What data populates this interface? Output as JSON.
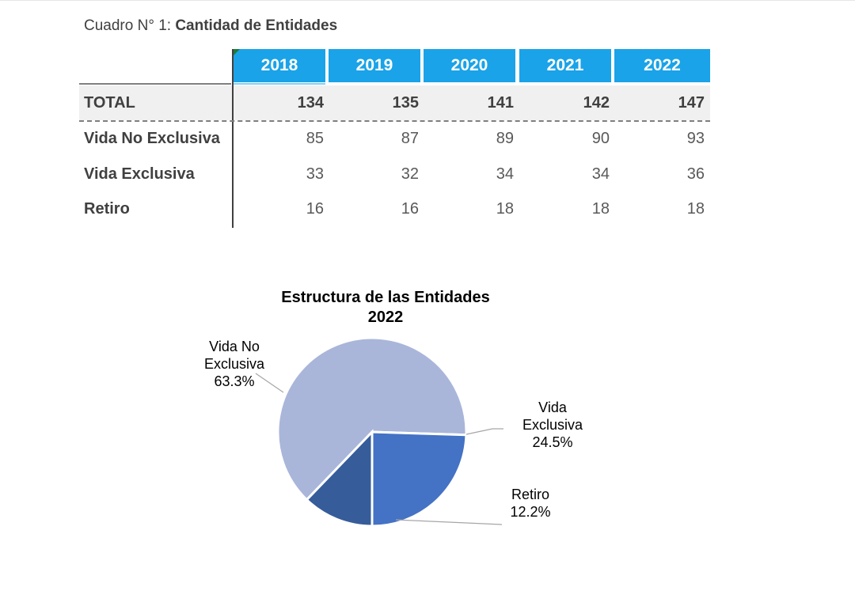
{
  "caption": {
    "prefix": "Cuadro N° 1: ",
    "title": "Cantidad de Entidades"
  },
  "table": {
    "years": [
      "2018",
      "2019",
      "2020",
      "2021",
      "2022"
    ],
    "rows": [
      {
        "label": "TOTAL",
        "values": [
          "134",
          "135",
          "141",
          "142",
          "147"
        ]
      },
      {
        "label": "Vida No Exclusiva",
        "values": [
          "85",
          "87",
          "89",
          "90",
          "93"
        ]
      },
      {
        "label": "Vida Exclusiva",
        "values": [
          "33",
          "32",
          "34",
          "34",
          "36"
        ]
      },
      {
        "label": "Retiro",
        "values": [
          "16",
          "16",
          "18",
          "18",
          "18"
        ]
      }
    ]
  },
  "colors": {
    "header_blue": "#1aa3e8",
    "vida_no_exclusiva": "#a9b6da",
    "vida_exclusiva": "#4472c4",
    "retiro": "#365c9a"
  },
  "chart_data": {
    "type": "pie",
    "title": "Estructura de las Entidades",
    "subtitle": "2022",
    "slices": [
      {
        "label_line1": "Vida No",
        "label_line2": "Exclusiva",
        "pct_text": "63.3%",
        "value": 63.3
      },
      {
        "label_line1": "Vida",
        "label_line2": "Exclusiva",
        "pct_text": "24.5%",
        "value": 24.5
      },
      {
        "label_line1": "Retiro",
        "label_line2": "",
        "pct_text": "12.2%",
        "value": 12.2
      }
    ]
  }
}
